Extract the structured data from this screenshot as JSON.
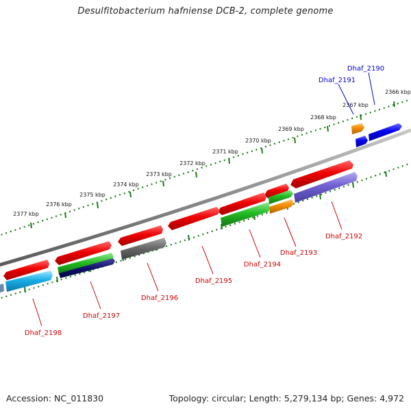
{
  "title": "Desulfitobacterium hafniense DCB-2, complete genome",
  "footer": {
    "accession": "Accession: NC_011830",
    "summary": "Topology: circular; Length: 5,279,134 bp; Genes: 4,972"
  },
  "colors": {
    "backbone": "#8c8c8c",
    "tick": "#1a7a1a",
    "label_red": "#cc0000",
    "label_blue": "#0000cc"
  },
  "kbp_labels": [
    "2366 kbp",
    "2367 kbp",
    "2368 kbp",
    "2369 kbp",
    "2370 kbp",
    "2371 kbp",
    "2372 kbp",
    "2373 kbp",
    "2374 kbp",
    "2375 kbp",
    "2376 kbp",
    "2377 kbp"
  ],
  "genes": [
    {
      "name": "Dhaf_2190",
      "color": "#0000cc"
    },
    {
      "name": "Dhaf_2191",
      "color": "#0000cc"
    },
    {
      "name": "Dhaf_2192",
      "color": "#cc0000"
    },
    {
      "name": "Dhaf_2193",
      "color": "#cc0000"
    },
    {
      "name": "Dhaf_2194",
      "color": "#cc0000"
    },
    {
      "name": "Dhaf_2195",
      "color": "#cc0000"
    },
    {
      "name": "Dhaf_2196",
      "color": "#cc0000"
    },
    {
      "name": "Dhaf_2197",
      "color": "#cc0000"
    },
    {
      "name": "Dhaf_2198",
      "color": "#cc0000"
    }
  ]
}
